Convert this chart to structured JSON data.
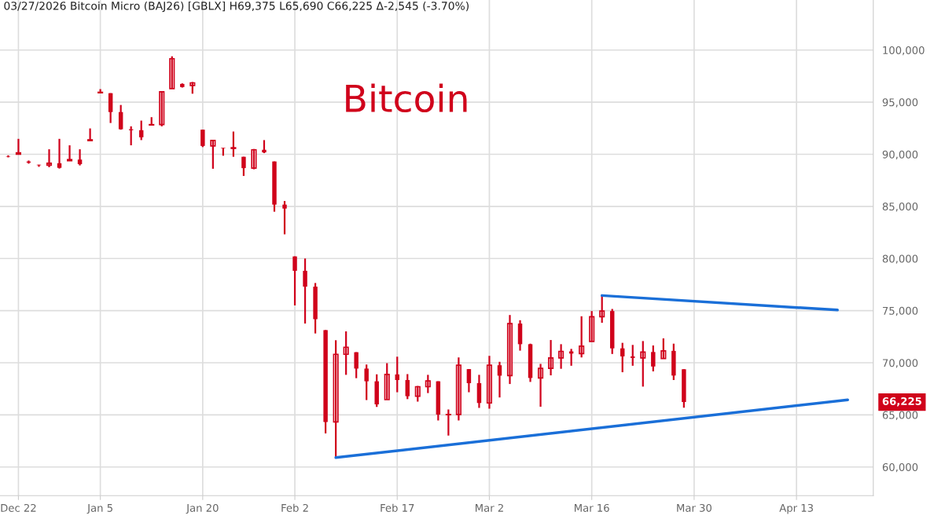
{
  "chart_data": {
    "type": "candlestick",
    "title": "03/27/2026 Bitcoin Micro (BAJ26) [GBLX] H69,375 L65,690 C66,225 Δ-2,545 (-3.70%)",
    "annotations": [
      "Bitcoin",
      "66,225"
    ],
    "categories": [
      null,
      "Dec 22",
      null,
      null,
      null,
      null,
      null,
      null,
      null,
      "Jan 5",
      null,
      null,
      null,
      null,
      null,
      null,
      null,
      null,
      null,
      "Jan 20",
      null,
      null,
      null,
      null,
      null,
      null,
      null,
      null,
      "Feb 2",
      null,
      null,
      null,
      null,
      null,
      null,
      null,
      null,
      null,
      "Feb 17",
      null,
      null,
      null,
      null,
      null,
      null,
      null,
      null,
      "Mar 2",
      null,
      null,
      null,
      null,
      null,
      null,
      null,
      null,
      null,
      "Mar 16",
      null,
      null,
      null,
      null,
      null,
      null,
      null,
      null,
      null,
      "Mar 30",
      null,
      null,
      null,
      null,
      null,
      null,
      null,
      null,
      null,
      "Apr 13",
      null,
      null,
      null,
      null,
      null,
      null,
      null
    ],
    "series": [
      {
        "color": "#d0021b",
        "ohlc": [
          [
            89800,
            89900,
            89700,
            89760
          ],
          [
            90010,
            91480,
            90010,
            90140
          ],
          [
            89300,
            89400,
            89100,
            89200
          ],
          [
            89000,
            89000,
            88800,
            88950
          ],
          [
            88950,
            90480,
            88760,
            89140
          ],
          [
            89140,
            91480,
            88630,
            88700
          ],
          [
            89380,
            90860,
            89380,
            89490
          ],
          [
            89490,
            90480,
            88930,
            89050
          ],
          [
            91310,
            92480,
            91310,
            91390
          ],
          [
            95900,
            96250,
            95900,
            95950
          ],
          [
            95860,
            95860,
            93000,
            94050
          ],
          [
            94050,
            94730,
            92360,
            92400
          ],
          [
            92400,
            92680,
            90860,
            92310
          ],
          [
            92310,
            93230,
            91360,
            91630
          ],
          [
            92810,
            93560,
            92810,
            92850
          ],
          [
            92850,
            96050,
            92680,
            96000
          ],
          [
            96300,
            99400,
            96300,
            99170
          ],
          [
            96750,
            96800,
            96400,
            96450
          ],
          [
            96600,
            96930,
            95810,
            96850
          ],
          [
            92360,
            92360,
            90690,
            90800
          ],
          [
            90800,
            91380,
            88610,
            91330
          ],
          [
            90610,
            90610,
            89860,
            90560
          ],
          [
            90560,
            92180,
            89760,
            90630
          ],
          [
            89760,
            89760,
            87920,
            88670
          ],
          [
            88670,
            90510,
            88560,
            90430
          ],
          [
            90430,
            91360,
            90110,
            90180
          ],
          [
            89310,
            89310,
            84490,
            85170
          ],
          [
            85170,
            85520,
            82320,
            84790
          ],
          [
            80200,
            80200,
            75500,
            78820
          ],
          [
            78820,
            80000,
            73760,
            77300
          ],
          [
            77300,
            77650,
            72810,
            74180
          ],
          [
            73130,
            73130,
            63220,
            64320
          ],
          [
            64320,
            72160,
            60900,
            70810
          ],
          [
            70810,
            73010,
            68840,
            71490
          ],
          [
            71010,
            71010,
            68520,
            69440
          ],
          [
            69440,
            69830,
            66420,
            68220
          ],
          [
            68220,
            68890,
            65770,
            66010
          ],
          [
            66460,
            69960,
            66460,
            68880
          ],
          [
            68880,
            70580,
            67170,
            68340
          ],
          [
            68340,
            68910,
            66510,
            66790
          ],
          [
            66790,
            67770,
            66270,
            67700
          ],
          [
            67700,
            68840,
            67090,
            68260
          ],
          [
            68220,
            68220,
            64470,
            65020
          ],
          [
            65020,
            65520,
            63020,
            65040
          ],
          [
            65040,
            70510,
            64470,
            69760
          ],
          [
            69390,
            69390,
            67170,
            68040
          ],
          [
            68040,
            68840,
            65670,
            66140
          ],
          [
            66140,
            70660,
            65590,
            69760
          ],
          [
            69760,
            70090,
            66670,
            68760
          ],
          [
            68760,
            74580,
            67960,
            73760
          ],
          [
            73760,
            74080,
            71160,
            71780
          ],
          [
            71780,
            71830,
            68160,
            68540
          ],
          [
            68540,
            69890,
            65790,
            69460
          ],
          [
            69460,
            72180,
            68790,
            70460
          ],
          [
            70460,
            71780,
            69420,
            71090
          ],
          [
            71090,
            71330,
            69710,
            70880
          ],
          [
            70880,
            74460,
            70510,
            71590
          ],
          [
            72040,
            74960,
            72040,
            74410
          ],
          [
            74410,
            76450,
            73830,
            74960
          ],
          [
            74960,
            75160,
            70840,
            71380
          ],
          [
            71380,
            71910,
            69090,
            70610
          ],
          [
            70610,
            71710,
            69710,
            70460
          ],
          [
            70460,
            72080,
            67710,
            71030
          ],
          [
            71030,
            71660,
            69170,
            69640
          ],
          [
            70410,
            72340,
            70410,
            71140
          ],
          [
            71140,
            71830,
            68340,
            68770
          ],
          [
            69375,
            69375,
            65690,
            66225
          ],
          null,
          null,
          null,
          null,
          null,
          null,
          null,
          null,
          null,
          null,
          null,
          null,
          null,
          null,
          null,
          null,
          null,
          null
        ]
      },
      {
        "type": "line",
        "color": "#1a6fd8",
        "values": [
          null,
          null,
          null,
          null,
          null,
          null,
          null,
          null,
          null,
          null,
          null,
          null,
          null,
          null,
          null,
          null,
          null,
          null,
          null,
          null,
          null,
          null,
          null,
          null,
          null,
          null,
          null,
          null,
          null,
          null,
          null,
          null,
          null,
          null,
          null,
          null,
          null,
          null,
          null,
          null,
          null,
          null,
          null,
          null,
          null,
          null,
          null,
          null,
          null,
          null,
          null,
          null,
          null,
          null,
          null,
          null,
          null,
          null,
          76450,
          null,
          null,
          null,
          null,
          null,
          null,
          null,
          null,
          null,
          null,
          null,
          null,
          null,
          null,
          null,
          null,
          null,
          null,
          null,
          null,
          null,
          null,
          75060,
          null,
          null,
          null
        ]
      },
      {
        "type": "line",
        "color": "#1a6fd8",
        "values": [
          null,
          null,
          null,
          null,
          null,
          null,
          null,
          null,
          null,
          null,
          null,
          null,
          null,
          null,
          null,
          null,
          null,
          null,
          null,
          null,
          null,
          null,
          null,
          null,
          null,
          null,
          null,
          null,
          null,
          null,
          null,
          null,
          60900,
          null,
          null,
          null,
          null,
          null,
          null,
          null,
          null,
          null,
          null,
          null,
          null,
          null,
          null,
          null,
          null,
          null,
          null,
          null,
          null,
          null,
          null,
          null,
          null,
          null,
          null,
          null,
          null,
          null,
          null,
          null,
          null,
          null,
          null,
          null,
          null,
          null,
          null,
          null,
          null,
          null,
          null,
          null,
          null,
          null,
          null,
          null,
          null,
          null,
          66440,
          null,
          null
        ]
      }
    ],
    "ylim": [
      57250,
      104800
    ],
    "yticks": [
      {
        "value": 60000,
        "label": "60,000"
      },
      {
        "value": 65000,
        "label": "65,000"
      },
      {
        "value": 70000,
        "label": "70,000"
      },
      {
        "value": 75000,
        "label": "75,000"
      },
      {
        "value": 80000,
        "label": "80,000"
      },
      {
        "value": 85000,
        "label": "85,000"
      },
      {
        "value": 90000,
        "label": "90,000"
      },
      {
        "value": 95000,
        "label": "95,000"
      },
      {
        "value": 100000,
        "label": "100,000"
      }
    ],
    "grid": true
  }
}
